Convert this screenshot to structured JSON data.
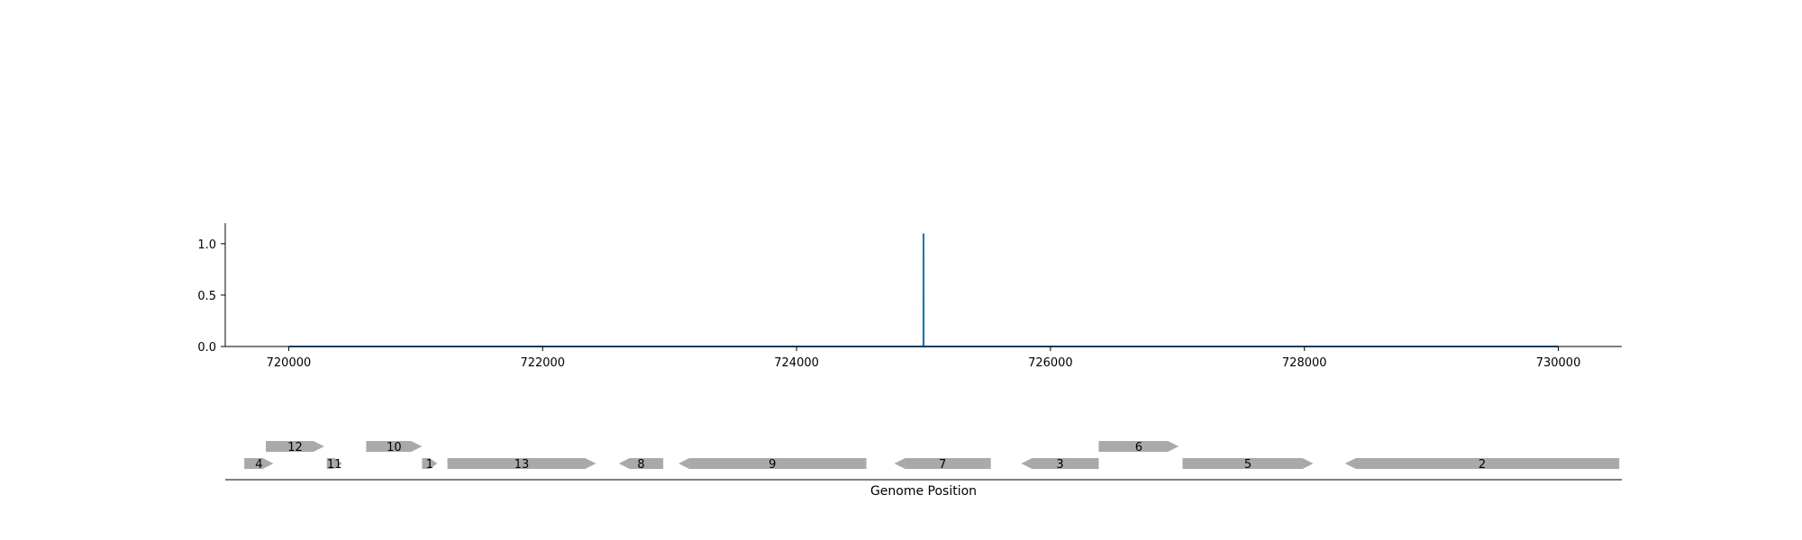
{
  "chart_data": {
    "type": "line",
    "colors": {
      "signal": "#1f77b4",
      "gene": "#a9a9a9",
      "axis": "#000000"
    },
    "signal_plot": {
      "xlim": [
        719500,
        730500
      ],
      "ylim": [
        0,
        1.2
      ],
      "xticks": [
        720000,
        722000,
        724000,
        726000,
        728000,
        730000
      ],
      "xtick_labels": [
        "720000",
        "722000",
        "724000",
        "726000",
        "728000",
        "730000"
      ],
      "yticks": [
        0.0,
        0.5,
        1.0
      ],
      "ytick_labels": [
        "0.0",
        "0.5",
        "1.0"
      ],
      "grid": false,
      "series": [
        {
          "x": [
            720000,
            724999,
            725000,
            725001,
            730000
          ],
          "y": [
            0,
            0,
            1.1,
            0,
            0
          ]
        }
      ]
    },
    "gene_track": {
      "xlabel": "Genome Position",
      "genes": [
        {
          "label": "4",
          "start": 719650,
          "end": 719880,
          "strand": "+",
          "row": 0
        },
        {
          "label": "11",
          "start": 720300,
          "end": 720420,
          "strand": "+",
          "row": 0
        },
        {
          "label": "1",
          "start": 721050,
          "end": 721170,
          "strand": "+",
          "row": 0
        },
        {
          "label": "13",
          "start": 721250,
          "end": 722420,
          "strand": "+",
          "row": 0
        },
        {
          "label": "8",
          "start": 722600,
          "end": 722950,
          "strand": "-",
          "row": 0
        },
        {
          "label": "9",
          "start": 723070,
          "end": 724550,
          "strand": "-",
          "row": 0
        },
        {
          "label": "7",
          "start": 724770,
          "end": 725530,
          "strand": "-",
          "row": 0
        },
        {
          "label": "3",
          "start": 725770,
          "end": 726380,
          "strand": "-",
          "row": 0
        },
        {
          "label": "5",
          "start": 727040,
          "end": 728070,
          "strand": "+",
          "row": 0
        },
        {
          "label": "2",
          "start": 728320,
          "end": 730480,
          "strand": "-",
          "row": 0
        },
        {
          "label": "12",
          "start": 719820,
          "end": 720280,
          "strand": "+",
          "row": 1
        },
        {
          "label": "10",
          "start": 720610,
          "end": 721050,
          "strand": "+",
          "row": 1
        },
        {
          "label": "6",
          "start": 726380,
          "end": 727010,
          "strand": "+",
          "row": 1
        }
      ]
    }
  }
}
